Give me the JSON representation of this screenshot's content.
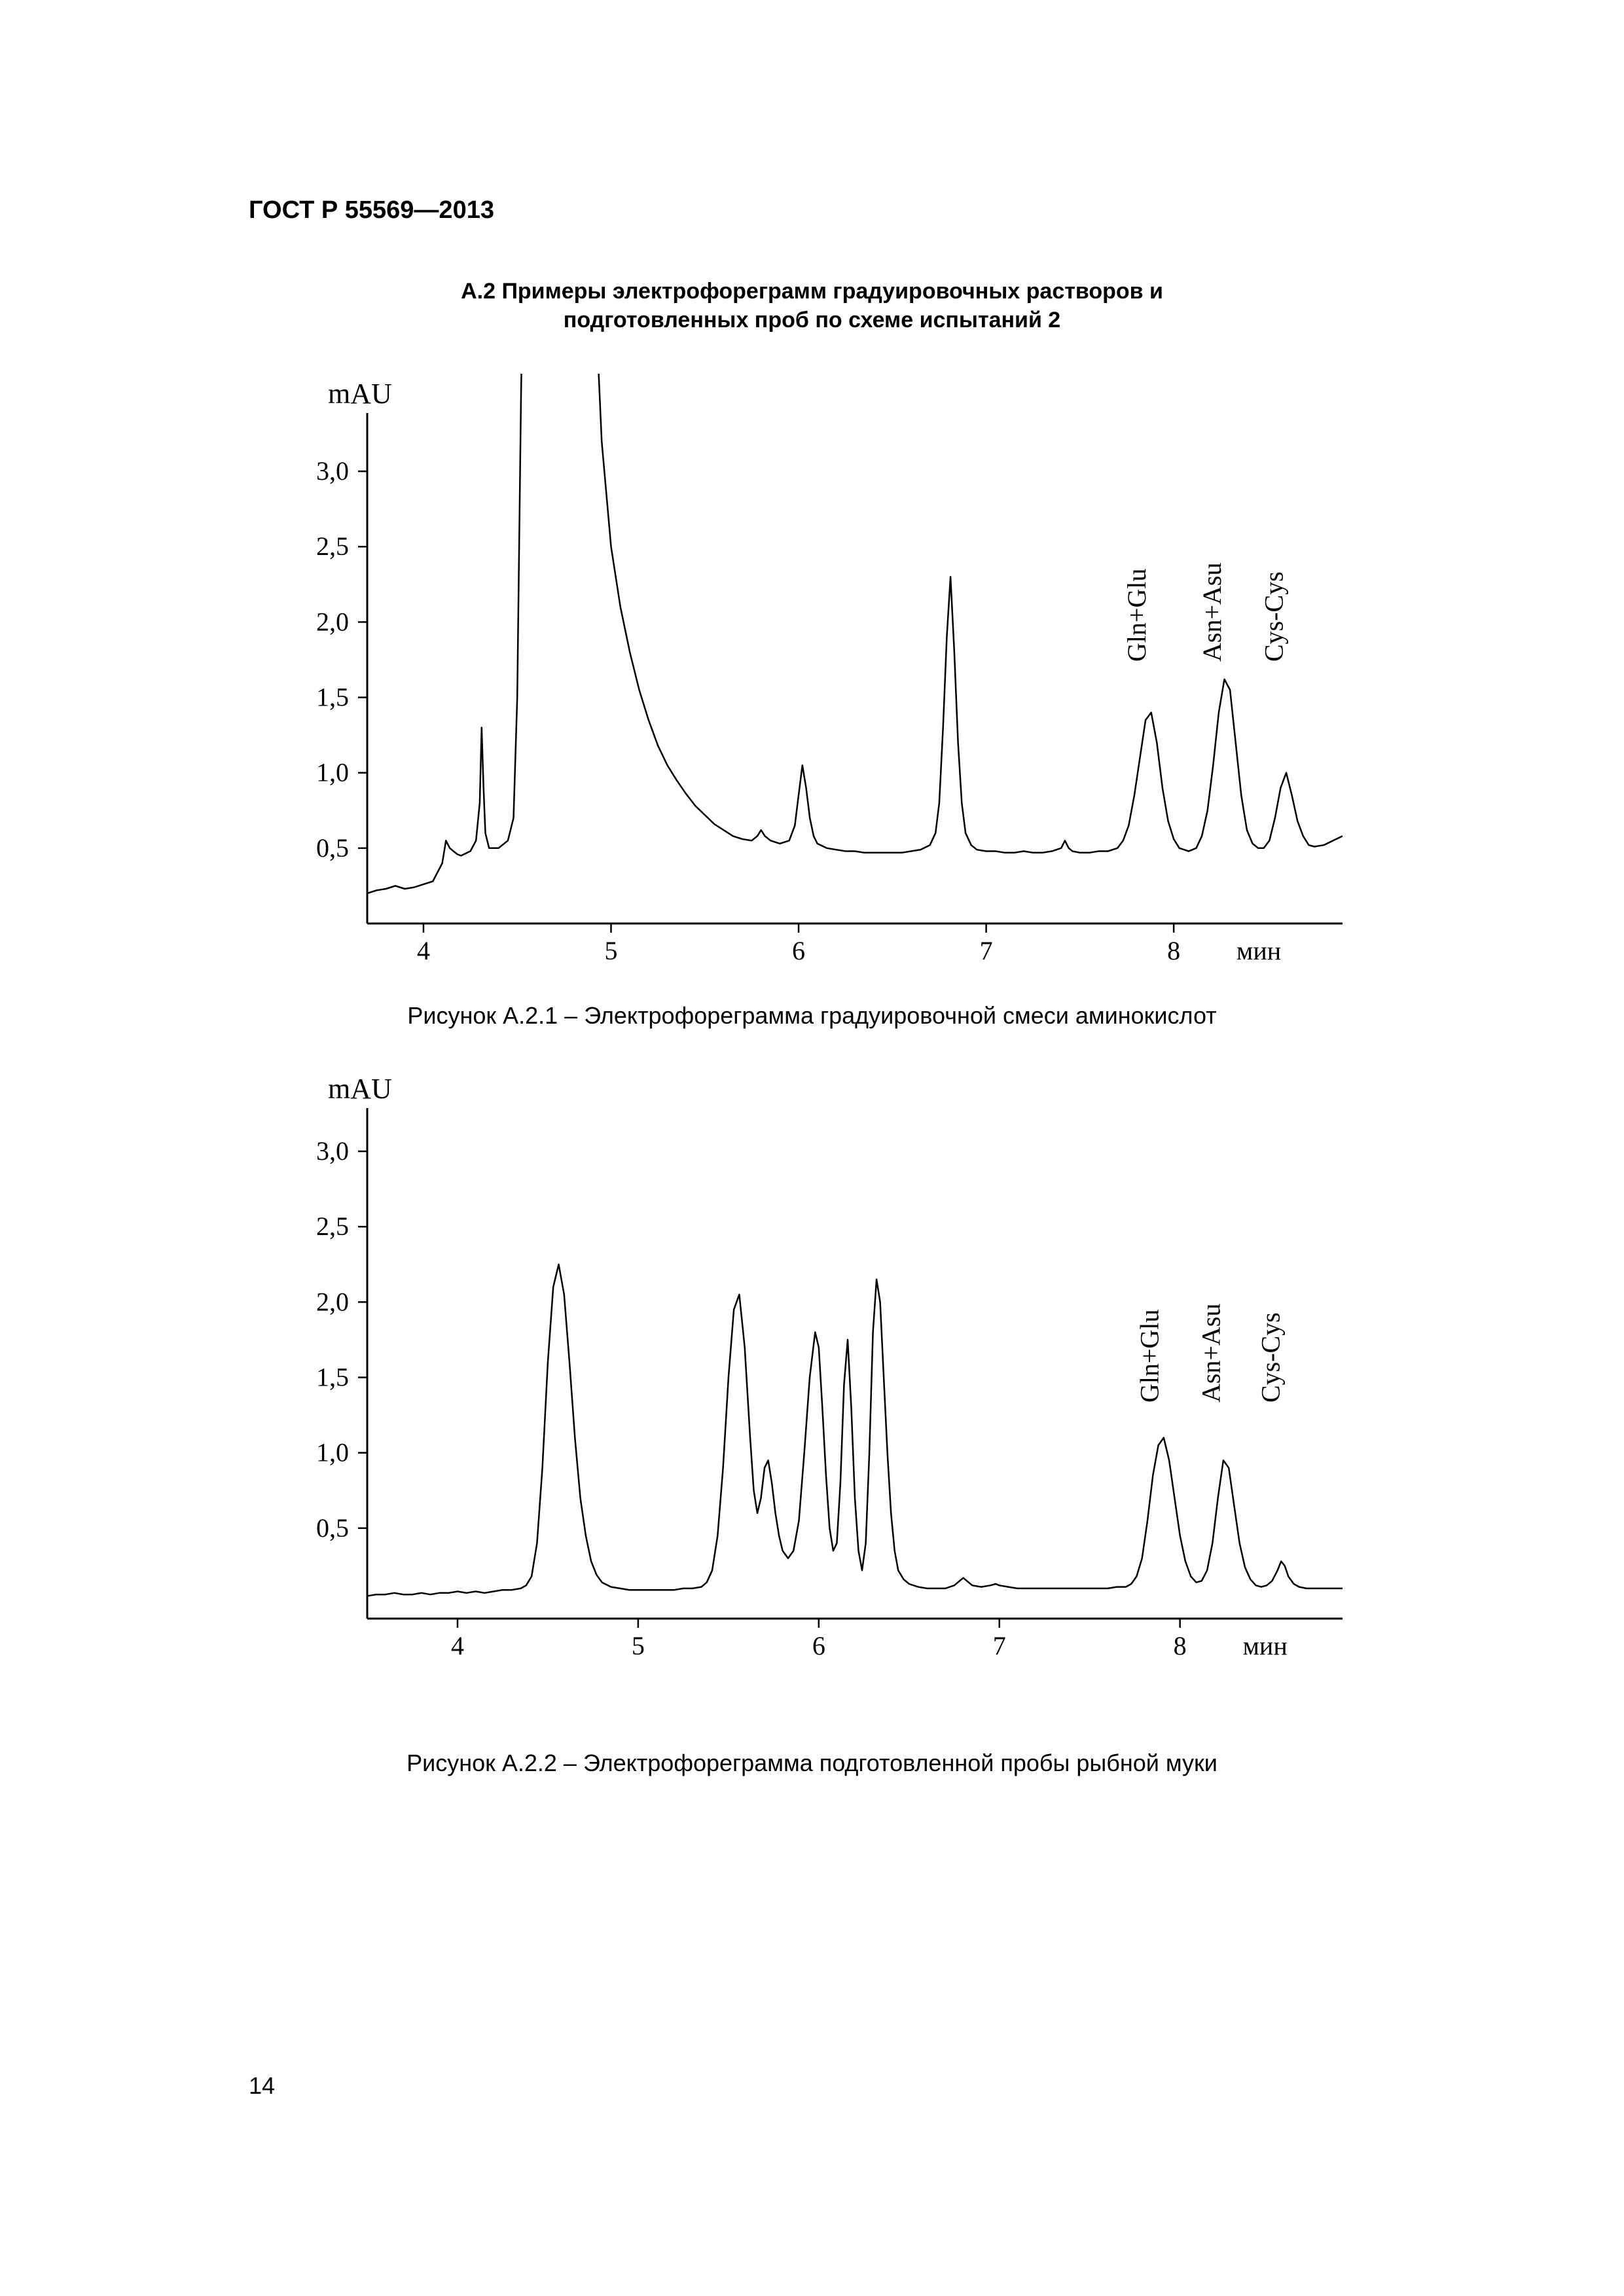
{
  "header": "ГОСТ Р 55569—2013",
  "section_title_line1": "А.2 Примеры электрофореграмм градуировочных растворов и",
  "section_title_line2": "подготовленных проб по схеме испытаний 2",
  "page_number": "14",
  "chart1": {
    "type": "line",
    "y_unit": "mAU",
    "x_unit": "мин",
    "caption": "Рисунок А.2.1 – Электрофореграмма градуировочной смеси аминокислот",
    "xlim": [
      3.7,
      8.9
    ],
    "ylim": [
      0.0,
      3.3
    ],
    "yticks": [
      0.5,
      1.0,
      1.5,
      2.0,
      2.5,
      3.0
    ],
    "ytick_labels": [
      "0,5",
      "1,0",
      "1,5",
      "2,0",
      "2,5",
      "3,0"
    ],
    "xticks": [
      4,
      5,
      6,
      7,
      8
    ],
    "xtick_labels": [
      "4",
      "5",
      "6",
      "7",
      "8"
    ],
    "line_color": "#000000",
    "line_width": 2.5,
    "axis_color": "#000000",
    "axis_width": 3,
    "peak_labels": [
      {
        "text": "Gln+Glu",
        "x": 7.85,
        "rot": -90
      },
      {
        "text": "Asn+Asu",
        "x": 8.25,
        "rot": -90
      },
      {
        "text": "Cys-Cys",
        "x": 8.58,
        "rot": -90
      }
    ],
    "data": [
      [
        3.7,
        0.2
      ],
      [
        3.75,
        0.22
      ],
      [
        3.8,
        0.23
      ],
      [
        3.85,
        0.25
      ],
      [
        3.9,
        0.23
      ],
      [
        3.95,
        0.24
      ],
      [
        4.0,
        0.26
      ],
      [
        4.05,
        0.28
      ],
      [
        4.1,
        0.4
      ],
      [
        4.12,
        0.55
      ],
      [
        4.14,
        0.5
      ],
      [
        4.16,
        0.48
      ],
      [
        4.18,
        0.46
      ],
      [
        4.2,
        0.45
      ],
      [
        4.25,
        0.48
      ],
      [
        4.28,
        0.55
      ],
      [
        4.3,
        0.8
      ],
      [
        4.31,
        1.3
      ],
      [
        4.32,
        0.9
      ],
      [
        4.33,
        0.6
      ],
      [
        4.35,
        0.5
      ],
      [
        4.4,
        0.5
      ],
      [
        4.45,
        0.55
      ],
      [
        4.48,
        0.7
      ],
      [
        4.5,
        1.5
      ],
      [
        4.52,
        3.5
      ],
      [
        4.55,
        6.0
      ],
      [
        4.7,
        6.0
      ],
      [
        4.85,
        6.0
      ],
      [
        4.95,
        3.2
      ],
      [
        5.0,
        2.5
      ],
      [
        5.05,
        2.1
      ],
      [
        5.1,
        1.8
      ],
      [
        5.15,
        1.55
      ],
      [
        5.2,
        1.35
      ],
      [
        5.25,
        1.18
      ],
      [
        5.3,
        1.05
      ],
      [
        5.35,
        0.95
      ],
      [
        5.4,
        0.86
      ],
      [
        5.45,
        0.78
      ],
      [
        5.5,
        0.72
      ],
      [
        5.55,
        0.66
      ],
      [
        5.6,
        0.62
      ],
      [
        5.65,
        0.58
      ],
      [
        5.7,
        0.56
      ],
      [
        5.75,
        0.55
      ],
      [
        5.78,
        0.58
      ],
      [
        5.8,
        0.62
      ],
      [
        5.82,
        0.58
      ],
      [
        5.85,
        0.55
      ],
      [
        5.9,
        0.53
      ],
      [
        5.95,
        0.55
      ],
      [
        5.98,
        0.65
      ],
      [
        6.0,
        0.85
      ],
      [
        6.02,
        1.05
      ],
      [
        6.04,
        0.9
      ],
      [
        6.06,
        0.7
      ],
      [
        6.08,
        0.58
      ],
      [
        6.1,
        0.53
      ],
      [
        6.15,
        0.5
      ],
      [
        6.2,
        0.49
      ],
      [
        6.25,
        0.48
      ],
      [
        6.3,
        0.48
      ],
      [
        6.35,
        0.47
      ],
      [
        6.4,
        0.47
      ],
      [
        6.45,
        0.47
      ],
      [
        6.5,
        0.47
      ],
      [
        6.55,
        0.47
      ],
      [
        6.6,
        0.48
      ],
      [
        6.65,
        0.49
      ],
      [
        6.7,
        0.52
      ],
      [
        6.73,
        0.6
      ],
      [
        6.75,
        0.8
      ],
      [
        6.77,
        1.3
      ],
      [
        6.79,
        1.9
      ],
      [
        6.81,
        2.3
      ],
      [
        6.83,
        1.8
      ],
      [
        6.85,
        1.2
      ],
      [
        6.87,
        0.8
      ],
      [
        6.89,
        0.6
      ],
      [
        6.92,
        0.52
      ],
      [
        6.95,
        0.49
      ],
      [
        7.0,
        0.48
      ],
      [
        7.05,
        0.48
      ],
      [
        7.1,
        0.47
      ],
      [
        7.15,
        0.47
      ],
      [
        7.2,
        0.48
      ],
      [
        7.25,
        0.47
      ],
      [
        7.3,
        0.47
      ],
      [
        7.35,
        0.48
      ],
      [
        7.4,
        0.5
      ],
      [
        7.42,
        0.55
      ],
      [
        7.44,
        0.5
      ],
      [
        7.46,
        0.48
      ],
      [
        7.5,
        0.47
      ],
      [
        7.55,
        0.47
      ],
      [
        7.6,
        0.48
      ],
      [
        7.65,
        0.48
      ],
      [
        7.7,
        0.5
      ],
      [
        7.73,
        0.55
      ],
      [
        7.76,
        0.65
      ],
      [
        7.79,
        0.85
      ],
      [
        7.82,
        1.1
      ],
      [
        7.85,
        1.35
      ],
      [
        7.88,
        1.4
      ],
      [
        7.91,
        1.2
      ],
      [
        7.94,
        0.9
      ],
      [
        7.97,
        0.68
      ],
      [
        8.0,
        0.56
      ],
      [
        8.03,
        0.5
      ],
      [
        8.08,
        0.48
      ],
      [
        8.12,
        0.5
      ],
      [
        8.15,
        0.58
      ],
      [
        8.18,
        0.75
      ],
      [
        8.21,
        1.05
      ],
      [
        8.24,
        1.4
      ],
      [
        8.27,
        1.62
      ],
      [
        8.3,
        1.55
      ],
      [
        8.33,
        1.2
      ],
      [
        8.36,
        0.85
      ],
      [
        8.39,
        0.62
      ],
      [
        8.42,
        0.53
      ],
      [
        8.45,
        0.5
      ],
      [
        8.48,
        0.5
      ],
      [
        8.51,
        0.55
      ],
      [
        8.54,
        0.7
      ],
      [
        8.57,
        0.9
      ],
      [
        8.6,
        1.0
      ],
      [
        8.63,
        0.85
      ],
      [
        8.66,
        0.68
      ],
      [
        8.69,
        0.58
      ],
      [
        8.72,
        0.52
      ],
      [
        8.75,
        0.51
      ],
      [
        8.8,
        0.52
      ],
      [
        8.85,
        0.55
      ],
      [
        8.9,
        0.58
      ]
    ]
  },
  "chart2": {
    "type": "line",
    "y_unit": "mAU",
    "x_unit": "мин",
    "caption": "Рисунок А.2.2 – Электрофореграмма подготовленной пробы рыбной муки",
    "xlim": [
      3.5,
      8.9
    ],
    "ylim": [
      -0.1,
      3.2
    ],
    "yticks": [
      0.5,
      1.0,
      1.5,
      2.0,
      2.5,
      3.0
    ],
    "ytick_labels": [
      "0,5",
      "1,0",
      "1,5",
      "2,0",
      "2,5",
      "3,0"
    ],
    "xticks": [
      4,
      5,
      6,
      7,
      8
    ],
    "xtick_labels": [
      "4",
      "5",
      "6",
      "7",
      "8"
    ],
    "line_color": "#000000",
    "line_width": 2.5,
    "axis_color": "#000000",
    "axis_width": 3,
    "peak_labels": [
      {
        "text": "Gln+Glu",
        "x": 7.88,
        "rot": -90
      },
      {
        "text": "Asn+Asu",
        "x": 8.22,
        "rot": -90
      },
      {
        "text": "Cys-Cys",
        "x": 8.55,
        "rot": -90
      }
    ],
    "data": [
      [
        3.5,
        0.05
      ],
      [
        3.55,
        0.06
      ],
      [
        3.6,
        0.06
      ],
      [
        3.65,
        0.07
      ],
      [
        3.7,
        0.06
      ],
      [
        3.75,
        0.06
      ],
      [
        3.8,
        0.07
      ],
      [
        3.85,
        0.06
      ],
      [
        3.9,
        0.07
      ],
      [
        3.95,
        0.07
      ],
      [
        4.0,
        0.08
      ],
      [
        4.05,
        0.07
      ],
      [
        4.1,
        0.08
      ],
      [
        4.15,
        0.07
      ],
      [
        4.2,
        0.08
      ],
      [
        4.25,
        0.09
      ],
      [
        4.3,
        0.09
      ],
      [
        4.35,
        0.1
      ],
      [
        4.38,
        0.12
      ],
      [
        4.41,
        0.18
      ],
      [
        4.44,
        0.4
      ],
      [
        4.47,
        0.9
      ],
      [
        4.5,
        1.6
      ],
      [
        4.53,
        2.1
      ],
      [
        4.56,
        2.25
      ],
      [
        4.59,
        2.05
      ],
      [
        4.62,
        1.6
      ],
      [
        4.65,
        1.1
      ],
      [
        4.68,
        0.7
      ],
      [
        4.71,
        0.45
      ],
      [
        4.74,
        0.28
      ],
      [
        4.77,
        0.19
      ],
      [
        4.8,
        0.14
      ],
      [
        4.85,
        0.11
      ],
      [
        4.9,
        0.1
      ],
      [
        4.95,
        0.09
      ],
      [
        5.0,
        0.09
      ],
      [
        5.05,
        0.09
      ],
      [
        5.1,
        0.09
      ],
      [
        5.15,
        0.09
      ],
      [
        5.2,
        0.09
      ],
      [
        5.25,
        0.1
      ],
      [
        5.3,
        0.1
      ],
      [
        5.35,
        0.11
      ],
      [
        5.38,
        0.14
      ],
      [
        5.41,
        0.22
      ],
      [
        5.44,
        0.45
      ],
      [
        5.47,
        0.9
      ],
      [
        5.5,
        1.5
      ],
      [
        5.53,
        1.95
      ],
      [
        5.56,
        2.05
      ],
      [
        5.59,
        1.7
      ],
      [
        5.62,
        1.1
      ],
      [
        5.64,
        0.75
      ],
      [
        5.66,
        0.6
      ],
      [
        5.68,
        0.7
      ],
      [
        5.7,
        0.9
      ],
      [
        5.72,
        0.95
      ],
      [
        5.74,
        0.8
      ],
      [
        5.76,
        0.6
      ],
      [
        5.78,
        0.45
      ],
      [
        5.8,
        0.35
      ],
      [
        5.83,
        0.3
      ],
      [
        5.86,
        0.35
      ],
      [
        5.89,
        0.55
      ],
      [
        5.92,
        1.0
      ],
      [
        5.95,
        1.5
      ],
      [
        5.98,
        1.8
      ],
      [
        6.0,
        1.7
      ],
      [
        6.02,
        1.3
      ],
      [
        6.04,
        0.85
      ],
      [
        6.06,
        0.5
      ],
      [
        6.08,
        0.35
      ],
      [
        6.1,
        0.4
      ],
      [
        6.12,
        0.8
      ],
      [
        6.14,
        1.45
      ],
      [
        6.16,
        1.75
      ],
      [
        6.18,
        1.3
      ],
      [
        6.2,
        0.7
      ],
      [
        6.22,
        0.35
      ],
      [
        6.24,
        0.22
      ],
      [
        6.26,
        0.4
      ],
      [
        6.28,
        1.0
      ],
      [
        6.3,
        1.8
      ],
      [
        6.32,
        2.15
      ],
      [
        6.34,
        2.0
      ],
      [
        6.36,
        1.5
      ],
      [
        6.38,
        1.0
      ],
      [
        6.4,
        0.6
      ],
      [
        6.42,
        0.35
      ],
      [
        6.44,
        0.22
      ],
      [
        6.47,
        0.16
      ],
      [
        6.5,
        0.13
      ],
      [
        6.55,
        0.11
      ],
      [
        6.6,
        0.1
      ],
      [
        6.65,
        0.1
      ],
      [
        6.7,
        0.1
      ],
      [
        6.75,
        0.12
      ],
      [
        6.78,
        0.15
      ],
      [
        6.8,
        0.17
      ],
      [
        6.82,
        0.15
      ],
      [
        6.85,
        0.12
      ],
      [
        6.9,
        0.11
      ],
      [
        6.95,
        0.12
      ],
      [
        6.98,
        0.13
      ],
      [
        7.0,
        0.12
      ],
      [
        7.05,
        0.11
      ],
      [
        7.1,
        0.1
      ],
      [
        7.15,
        0.1
      ],
      [
        7.2,
        0.1
      ],
      [
        7.25,
        0.1
      ],
      [
        7.3,
        0.1
      ],
      [
        7.35,
        0.1
      ],
      [
        7.4,
        0.1
      ],
      [
        7.45,
        0.1
      ],
      [
        7.5,
        0.1
      ],
      [
        7.55,
        0.1
      ],
      [
        7.6,
        0.1
      ],
      [
        7.65,
        0.11
      ],
      [
        7.7,
        0.11
      ],
      [
        7.73,
        0.13
      ],
      [
        7.76,
        0.18
      ],
      [
        7.79,
        0.3
      ],
      [
        7.82,
        0.55
      ],
      [
        7.85,
        0.85
      ],
      [
        7.88,
        1.05
      ],
      [
        7.91,
        1.1
      ],
      [
        7.94,
        0.95
      ],
      [
        7.97,
        0.7
      ],
      [
        8.0,
        0.45
      ],
      [
        8.03,
        0.28
      ],
      [
        8.06,
        0.18
      ],
      [
        8.09,
        0.14
      ],
      [
        8.12,
        0.15
      ],
      [
        8.15,
        0.22
      ],
      [
        8.18,
        0.4
      ],
      [
        8.21,
        0.7
      ],
      [
        8.24,
        0.95
      ],
      [
        8.27,
        0.9
      ],
      [
        8.3,
        0.65
      ],
      [
        8.33,
        0.4
      ],
      [
        8.36,
        0.24
      ],
      [
        8.39,
        0.16
      ],
      [
        8.42,
        0.12
      ],
      [
        8.45,
        0.11
      ],
      [
        8.48,
        0.12
      ],
      [
        8.51,
        0.15
      ],
      [
        8.54,
        0.22
      ],
      [
        8.56,
        0.28
      ],
      [
        8.58,
        0.25
      ],
      [
        8.6,
        0.18
      ],
      [
        8.63,
        0.13
      ],
      [
        8.66,
        0.11
      ],
      [
        8.7,
        0.1
      ],
      [
        8.75,
        0.1
      ],
      [
        8.8,
        0.1
      ],
      [
        8.85,
        0.1
      ],
      [
        8.9,
        0.1
      ]
    ]
  }
}
